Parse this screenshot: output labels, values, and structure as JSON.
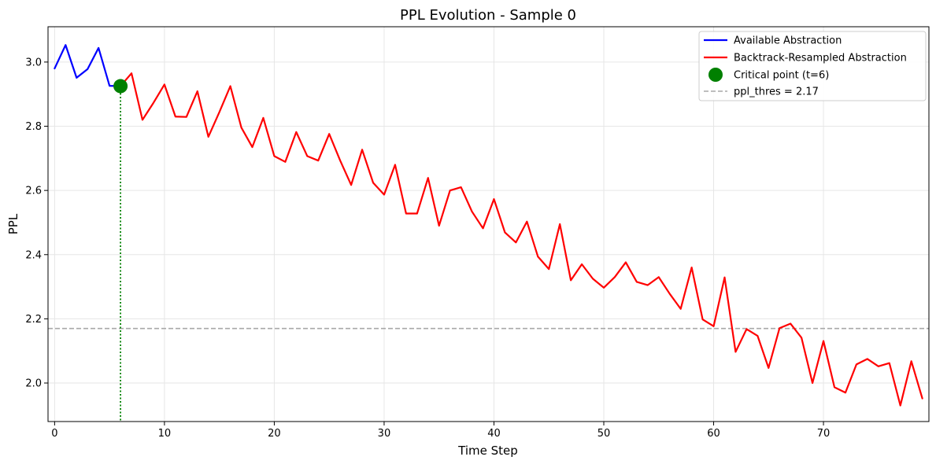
{
  "chart_data": {
    "type": "line",
    "title": "PPL Evolution - Sample 0",
    "xlabel": "Time Step",
    "ylabel": "PPL",
    "xlim": [
      -0.6,
      79.6
    ],
    "ylim": [
      1.88,
      3.11
    ],
    "x_ticks": [
      0,
      10,
      20,
      30,
      40,
      50,
      60,
      70
    ],
    "y_ticks": [
      2.0,
      2.2,
      2.4,
      2.6,
      2.8,
      3.0
    ],
    "x_tick_labels": [
      "0",
      "10",
      "20",
      "30",
      "40",
      "50",
      "60",
      "70"
    ],
    "y_tick_labels": [
      "2.0",
      "2.2",
      "2.4",
      "2.6",
      "2.8",
      "3.0"
    ],
    "grid": true,
    "legend_position": "top-right",
    "series": [
      {
        "name": "Available Abstraction",
        "color": "#0000ff",
        "x": [
          0,
          1,
          2,
          3,
          4,
          5,
          6
        ],
        "y": [
          2.98,
          3.053,
          2.951,
          2.978,
          3.044,
          2.926,
          2.925
        ]
      },
      {
        "name": "Backtrack-Resampled Abstraction",
        "color": "#ff0000",
        "x": [
          6,
          7,
          8,
          9,
          10,
          11,
          12,
          13,
          14,
          15,
          16,
          17,
          18,
          19,
          20,
          21,
          22,
          23,
          24,
          25,
          26,
          27,
          28,
          29,
          30,
          31,
          32,
          33,
          34,
          35,
          36,
          37,
          38,
          39,
          40,
          41,
          42,
          43,
          44,
          45,
          46,
          47,
          48,
          49,
          50,
          51,
          52,
          53,
          54,
          55,
          56,
          57,
          58,
          59,
          60,
          61,
          62,
          63,
          64,
          65,
          66,
          67,
          68,
          69,
          70,
          71,
          72,
          73,
          74,
          75,
          76,
          77,
          78,
          79
        ],
        "y": [
          2.925,
          2.965,
          2.82,
          2.873,
          2.93,
          2.83,
          2.829,
          2.909,
          2.767,
          2.844,
          2.925,
          2.796,
          2.735,
          2.826,
          2.707,
          2.689,
          2.782,
          2.707,
          2.693,
          2.776,
          2.693,
          2.617,
          2.727,
          2.624,
          2.587,
          2.68,
          2.528,
          2.528,
          2.639,
          2.49,
          2.6,
          2.61,
          2.534,
          2.482,
          2.573,
          2.469,
          2.438,
          2.503,
          2.394,
          2.355,
          2.495,
          2.32,
          2.37,
          2.325,
          2.297,
          2.33,
          2.376,
          2.315,
          2.305,
          2.33,
          2.278,
          2.231,
          2.36,
          2.198,
          2.177,
          2.329,
          2.097,
          2.168,
          2.147,
          2.047,
          2.171,
          2.185,
          2.141,
          2.0,
          2.131,
          1.987,
          1.97,
          2.058,
          2.075,
          2.052,
          2.062,
          1.93,
          2.068,
          1.952
        ]
      }
    ],
    "critical_point": {
      "label": "Critical point (t=6)",
      "color": "#008000",
      "x": 6,
      "y": 2.925
    },
    "threshold": {
      "label": "ppl_thres = 2.17",
      "value": 2.17,
      "color": "#a9a9a9"
    }
  }
}
